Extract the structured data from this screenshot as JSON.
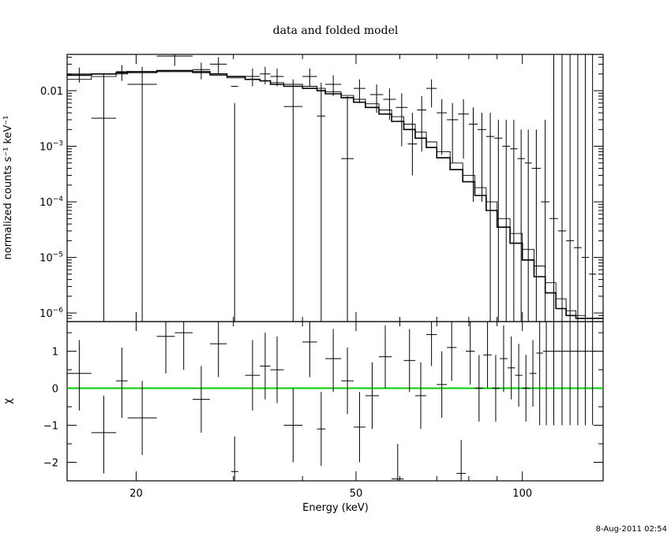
{
  "chart_data": [
    {
      "type": "line",
      "title": "data and folded model",
      "ylabel": "normalized counts s⁻¹ keV⁻¹",
      "xscale": "log",
      "yscale": "log",
      "xlim": [
        15,
        140
      ],
      "ylim": [
        7e-07,
        0.045
      ],
      "xticks": [
        20,
        50,
        100
      ],
      "xtick_labels": [
        "20",
        "50",
        "100"
      ],
      "yticks": [
        0.01,
        0.001,
        0.0001,
        1e-05,
        1e-06
      ],
      "ytick_labels": [
        {
          "base": "0.01",
          "exp": ""
        },
        {
          "base": "10",
          "exp": "−3"
        },
        {
          "base": "10",
          "exp": "−4"
        },
        {
          "base": "10",
          "exp": "−5"
        },
        {
          "base": "10",
          "exp": "−6"
        }
      ],
      "grid": false,
      "data_points": [
        {
          "xlo": 15.0,
          "xhi": 16.6,
          "y": 0.02,
          "ylo": 0.014,
          "yhi": 0.026
        },
        {
          "xlo": 16.6,
          "xhi": 18.4,
          "y": 0.0032,
          "ylo": 7e-07,
          "yhi": 0.02
        },
        {
          "xlo": 18.4,
          "xhi": 19.3,
          "y": 0.022,
          "ylo": 0.015,
          "yhi": 0.029
        },
        {
          "xlo": 19.3,
          "xhi": 21.8,
          "y": 0.013,
          "ylo": 7e-07,
          "yhi": 0.027
        },
        {
          "xlo": 21.8,
          "xhi": 25.3,
          "y": 0.042,
          "ylo": 0.028,
          "yhi": 0.05
        },
        {
          "xlo": 25.3,
          "xhi": 27.2,
          "y": 0.024,
          "ylo": 0.016,
          "yhi": 0.032
        },
        {
          "xlo": 27.2,
          "xhi": 29.2,
          "y": 0.03,
          "ylo": 0.02,
          "yhi": 0.04
        },
        {
          "xlo": 29.7,
          "xhi": 30.6,
          "y": 0.012,
          "ylo": 7e-07,
          "yhi": 0.006
        },
        {
          "xlo": 31.5,
          "xhi": 33.5,
          "y": 0.018,
          "ylo": 0.012,
          "yhi": 0.025
        },
        {
          "xlo": 33.5,
          "xhi": 35.0,
          "y": 0.02,
          "ylo": 0.013,
          "yhi": 0.027
        },
        {
          "xlo": 35.0,
          "xhi": 37.0,
          "y": 0.018,
          "ylo": 0.012,
          "yhi": 0.025
        },
        {
          "xlo": 37.0,
          "xhi": 40.0,
          "y": 0.0052,
          "ylo": 7e-07,
          "yhi": 0.016
        },
        {
          "xlo": 40.0,
          "xhi": 42.5,
          "y": 0.018,
          "ylo": 0.012,
          "yhi": 0.025
        },
        {
          "xlo": 42.5,
          "xhi": 44.0,
          "y": 0.0035,
          "ylo": 7e-07,
          "yhi": 0.014
        },
        {
          "xlo": 44.0,
          "xhi": 47.0,
          "y": 0.013,
          "ylo": 0.008,
          "yhi": 0.019
        },
        {
          "xlo": 47.0,
          "xhi": 49.5,
          "y": 0.0006,
          "ylo": 7e-07,
          "yhi": 0.008
        },
        {
          "xlo": 49.5,
          "xhi": 52.0,
          "y": 0.011,
          "ylo": 0.006,
          "yhi": 0.016
        },
        {
          "xlo": 53.0,
          "xhi": 56.0,
          "y": 0.0085,
          "ylo": 0.004,
          "yhi": 0.013
        },
        {
          "xlo": 56.0,
          "xhi": 59.0,
          "y": 0.007,
          "ylo": 0.003,
          "yhi": 0.011
        },
        {
          "xlo": 59.0,
          "xhi": 62.0,
          "y": 0.005,
          "ylo": 0.001,
          "yhi": 0.009
        },
        {
          "xlo": 62.0,
          "xhi": 64.5,
          "y": 0.0011,
          "ylo": 0.0003,
          "yhi": 0.004
        },
        {
          "xlo": 64.5,
          "xhi": 67.0,
          "y": 0.0045,
          "ylo": 0.0008,
          "yhi": 0.008
        },
        {
          "xlo": 67.0,
          "xhi": 70.0,
          "y": 0.011,
          "ylo": 0.005,
          "yhi": 0.016
        },
        {
          "xlo": 70.0,
          "xhi": 73.0,
          "y": 0.004,
          "ylo": 0.0007,
          "yhi": 0.007
        },
        {
          "xlo": 73.0,
          "xhi": 76.5,
          "y": 0.003,
          "ylo": 0.0005,
          "yhi": 0.006
        },
        {
          "xlo": 76.5,
          "xhi": 80.0,
          "y": 0.0038,
          "ylo": 0.0006,
          "yhi": 0.007
        },
        {
          "xlo": 80.0,
          "xhi": 83.0,
          "y": 0.0025,
          "ylo": 0.0001,
          "yhi": 0.005
        },
        {
          "xlo": 83.0,
          "xhi": 86.0,
          "y": 0.002,
          "ylo": 0.0001,
          "yhi": 0.004
        },
        {
          "xlo": 86.0,
          "xhi": 89.0,
          "y": 0.0015,
          "ylo": 7e-07,
          "yhi": 0.004
        },
        {
          "xlo": 89.0,
          "xhi": 92.0,
          "y": 0.0014,
          "ylo": 7e-07,
          "yhi": 0.003
        },
        {
          "xlo": 92.0,
          "xhi": 95.0,
          "y": 0.001,
          "ylo": 7e-07,
          "yhi": 0.003
        },
        {
          "xlo": 95.0,
          "xhi": 98.0,
          "y": 0.0009,
          "ylo": 7e-07,
          "yhi": 0.003
        },
        {
          "xlo": 98.0,
          "xhi": 101.0,
          "y": 0.0006,
          "ylo": 7e-07,
          "yhi": 0.002
        },
        {
          "xlo": 101.0,
          "xhi": 104.0,
          "y": 0.0005,
          "ylo": 7e-07,
          "yhi": 0.002
        },
        {
          "xlo": 104.0,
          "xhi": 108.0,
          "y": 0.0004,
          "ylo": 7e-07,
          "yhi": 0.002
        },
        {
          "xlo": 108.0,
          "xhi": 112.0,
          "y": 0.0001,
          "ylo": 7e-07,
          "yhi": 0.003
        },
        {
          "xlo": 112.0,
          "xhi": 116.0,
          "y": 5e-05,
          "ylo": 7e-07,
          "yhi": 0.045
        },
        {
          "xlo": 116.0,
          "xhi": 120.0,
          "y": 3e-05,
          "ylo": 7e-07,
          "yhi": 0.045
        },
        {
          "xlo": 120.0,
          "xhi": 124.0,
          "y": 2e-05,
          "ylo": 7e-07,
          "yhi": 0.045
        },
        {
          "xlo": 124.0,
          "xhi": 128.0,
          "y": 1.5e-05,
          "ylo": 7e-07,
          "yhi": 0.045
        },
        {
          "xlo": 128.0,
          "xhi": 132.0,
          "y": 1e-05,
          "ylo": 7e-07,
          "yhi": 0.045
        },
        {
          "xlo": 132.0,
          "xhi": 136.0,
          "y": 5e-06,
          "ylo": 7e-07,
          "yhi": 0.045
        }
      ],
      "model_histograms": [
        {
          "edges": [
            15.0,
            16.6,
            18.4,
            19.3,
            21.8,
            25.3,
            27.2,
            29.2,
            31.5,
            33.5,
            35.0,
            37.0,
            40.0,
            42.5,
            44.0,
            47.0,
            49.5,
            52.0,
            55.0,
            58.0,
            61.0,
            64.0,
            67.0,
            70.0,
            74.0,
            78.0,
            82.0,
            86.0,
            90.0,
            95.0,
            100.0,
            105.0,
            110.0,
            115.0,
            120.0,
            125.0,
            130.0,
            135.0,
            140.0
          ],
          "values": [
            0.019,
            0.02,
            0.021,
            0.022,
            0.023,
            0.022,
            0.02,
            0.018,
            0.016,
            0.015,
            0.013,
            0.012,
            0.011,
            0.01,
            0.0088,
            0.0075,
            0.0062,
            0.005,
            0.0038,
            0.0028,
            0.002,
            0.0014,
            0.00095,
            0.00062,
            0.00038,
            0.00023,
            0.00013,
            7e-05,
            3.5e-05,
            1.8e-05,
            9e-06,
            4.5e-06,
            2.3e-06,
            1.2e-06,
            9e-07,
            8e-07,
            8e-07,
            8e-07
          ]
        },
        {
          "edges": [
            15.0,
            16.6,
            18.4,
            19.3,
            21.8,
            25.3,
            27.2,
            29.2,
            31.5,
            33.5,
            35.0,
            37.0,
            40.0,
            42.5,
            44.0,
            47.0,
            49.5,
            52.0,
            55.0,
            58.0,
            61.0,
            64.0,
            67.0,
            70.0,
            74.0,
            78.0,
            82.0,
            86.0,
            90.0,
            95.0,
            100.0,
            105.0,
            110.0,
            115.0,
            120.0,
            125.0,
            130.0,
            135.0,
            140.0
          ],
          "values": [
            0.016,
            0.018,
            0.02,
            0.021,
            0.022,
            0.021,
            0.019,
            0.017,
            0.016,
            0.015,
            0.014,
            0.013,
            0.012,
            0.011,
            0.0095,
            0.0082,
            0.007,
            0.0058,
            0.0045,
            0.0034,
            0.0025,
            0.0018,
            0.0012,
            0.0008,
            0.0005,
            0.0003,
            0.00018,
            0.0001,
            5e-05,
            2.7e-05,
            1.4e-05,
            7e-06,
            3.5e-06,
            1.8e-06,
            1.1e-06,
            9e-07,
            8e-07,
            8e-07
          ]
        }
      ]
    },
    {
      "type": "line",
      "xlabel": "Energy (keV)",
      "ylabel": "χ",
      "xscale": "log",
      "xlim": [
        15,
        140
      ],
      "ylim": [
        -2.5,
        1.8
      ],
      "xticks": [
        20,
        50,
        100
      ],
      "xtick_labels": [
        "20",
        "50",
        "100"
      ],
      "yticks": [
        1,
        0,
        -1,
        -2
      ],
      "ytick_labels": [
        "1",
        "0",
        "−1",
        "−2"
      ],
      "reference_line": {
        "y": 0,
        "color": "#00cc00"
      },
      "grid": false,
      "residuals": [
        {
          "xlo": 15.0,
          "xhi": 16.6,
          "y": 0.4,
          "ylo": -0.6,
          "yhi": 1.3
        },
        {
          "xlo": 16.6,
          "xhi": 18.4,
          "y": -1.2,
          "ylo": -2.3,
          "yhi": -0.2
        },
        {
          "xlo": 18.4,
          "xhi": 19.3,
          "y": 0.2,
          "ylo": -0.8,
          "yhi": 1.1
        },
        {
          "xlo": 19.3,
          "xhi": 21.8,
          "y": -0.8,
          "ylo": -1.8,
          "yhi": 0.2
        },
        {
          "xlo": 21.8,
          "xhi": 23.5,
          "y": 1.4,
          "ylo": 0.4,
          "yhi": 1.8
        },
        {
          "xlo": 23.5,
          "xhi": 25.3,
          "y": 1.5,
          "ylo": 0.5,
          "yhi": 1.8
        },
        {
          "xlo": 25.3,
          "xhi": 27.2,
          "y": -0.3,
          "ylo": -1.2,
          "yhi": 0.6
        },
        {
          "xlo": 27.2,
          "xhi": 29.2,
          "y": 1.2,
          "ylo": 0.3,
          "yhi": 1.8
        },
        {
          "xlo": 29.7,
          "xhi": 30.6,
          "y": -2.25,
          "ylo": -2.5,
          "yhi": -1.3
        },
        {
          "xlo": 31.5,
          "xhi": 33.5,
          "y": 0.35,
          "ylo": -0.6,
          "yhi": 1.3
        },
        {
          "xlo": 33.5,
          "xhi": 35.0,
          "y": 0.6,
          "ylo": -0.3,
          "yhi": 1.5
        },
        {
          "xlo": 35.0,
          "xhi": 37.0,
          "y": 0.5,
          "ylo": -0.4,
          "yhi": 1.4
        },
        {
          "xlo": 37.0,
          "xhi": 40.0,
          "y": -1.0,
          "ylo": -2.0,
          "yhi": 0.0
        },
        {
          "xlo": 40.0,
          "xhi": 42.5,
          "y": 1.25,
          "ylo": 0.3,
          "yhi": 1.8
        },
        {
          "xlo": 42.5,
          "xhi": 44.0,
          "y": -1.1,
          "ylo": -2.1,
          "yhi": -0.1
        },
        {
          "xlo": 44.0,
          "xhi": 47.0,
          "y": 0.8,
          "ylo": -0.1,
          "yhi": 1.6
        },
        {
          "xlo": 47.0,
          "xhi": 49.5,
          "y": 0.2,
          "ylo": -0.7,
          "yhi": 1.1
        },
        {
          "xlo": 49.5,
          "xhi": 52.0,
          "y": -1.05,
          "ylo": -2.0,
          "yhi": -0.1
        },
        {
          "xlo": 52.0,
          "xhi": 55.0,
          "y": -0.2,
          "ylo": -1.1,
          "yhi": 0.7
        },
        {
          "xlo": 55.0,
          "xhi": 58.0,
          "y": 0.85,
          "ylo": 0.0,
          "yhi": 1.7
        },
        {
          "xlo": 58.0,
          "xhi": 61.0,
          "y": -2.45,
          "ylo": -2.5,
          "yhi": -1.5
        },
        {
          "xlo": 61.0,
          "xhi": 64.0,
          "y": 0.75,
          "ylo": -0.1,
          "yhi": 1.6
        },
        {
          "xlo": 64.0,
          "xhi": 67.0,
          "y": -0.2,
          "ylo": -1.1,
          "yhi": 0.7
        },
        {
          "xlo": 67.0,
          "xhi": 70.0,
          "y": 1.45,
          "ylo": 0.6,
          "yhi": 1.8
        },
        {
          "xlo": 70.0,
          "xhi": 73.0,
          "y": 0.1,
          "ylo": -0.8,
          "yhi": 1.0
        },
        {
          "xlo": 73.0,
          "xhi": 76.0,
          "y": 1.1,
          "ylo": 0.2,
          "yhi": 1.8
        },
        {
          "xlo": 76.0,
          "xhi": 79.0,
          "y": -2.3,
          "ylo": -2.5,
          "yhi": -1.4
        },
        {
          "xlo": 79.0,
          "xhi": 82.0,
          "y": 1.0,
          "ylo": 0.1,
          "yhi": 1.8
        },
        {
          "xlo": 82.0,
          "xhi": 85.0,
          "y": 0.0,
          "ylo": -0.9,
          "yhi": 0.9
        },
        {
          "xlo": 85.0,
          "xhi": 88.0,
          "y": 0.9,
          "ylo": 0.0,
          "yhi": 1.8
        },
        {
          "xlo": 88.0,
          "xhi": 91.0,
          "y": 0.0,
          "ylo": -0.9,
          "yhi": 0.9
        },
        {
          "xlo": 91.0,
          "xhi": 94.0,
          "y": 0.8,
          "ylo": -0.1,
          "yhi": 1.7
        },
        {
          "xlo": 94.0,
          "xhi": 97.0,
          "y": 0.55,
          "ylo": -0.3,
          "yhi": 1.4
        },
        {
          "xlo": 97.0,
          "xhi": 100.0,
          "y": 0.35,
          "ylo": -0.5,
          "yhi": 1.2
        },
        {
          "xlo": 100.0,
          "xhi": 103.0,
          "y": 0.0,
          "ylo": -0.9,
          "yhi": 0.9
        },
        {
          "xlo": 103.0,
          "xhi": 106.0,
          "y": 0.4,
          "ylo": -0.5,
          "yhi": 1.3
        },
        {
          "xlo": 106.0,
          "xhi": 109.0,
          "y": 0.95,
          "ylo": -1.0,
          "yhi": 1.8
        },
        {
          "xlo": 109.0,
          "xhi": 112.0,
          "y": 1.0,
          "ylo": -1.0,
          "yhi": 1.8
        },
        {
          "xlo": 112.0,
          "xhi": 116.0,
          "y": 1.0,
          "ylo": -1.0,
          "yhi": 1.8
        },
        {
          "xlo": 116.0,
          "xhi": 120.0,
          "y": 1.0,
          "ylo": -1.0,
          "yhi": 1.8
        },
        {
          "xlo": 120.0,
          "xhi": 124.0,
          "y": 1.0,
          "ylo": -1.0,
          "yhi": 1.8
        },
        {
          "xlo": 124.0,
          "xhi": 128.0,
          "y": 1.0,
          "ylo": -1.0,
          "yhi": 1.8
        },
        {
          "xlo": 128.0,
          "xhi": 132.0,
          "y": 1.0,
          "ylo": -1.0,
          "yhi": 1.8
        },
        {
          "xlo": 132.0,
          "xhi": 136.0,
          "y": 1.0,
          "ylo": -1.0,
          "yhi": 1.8
        }
      ]
    }
  ],
  "timestamp": "8-Aug-2011 02:54"
}
